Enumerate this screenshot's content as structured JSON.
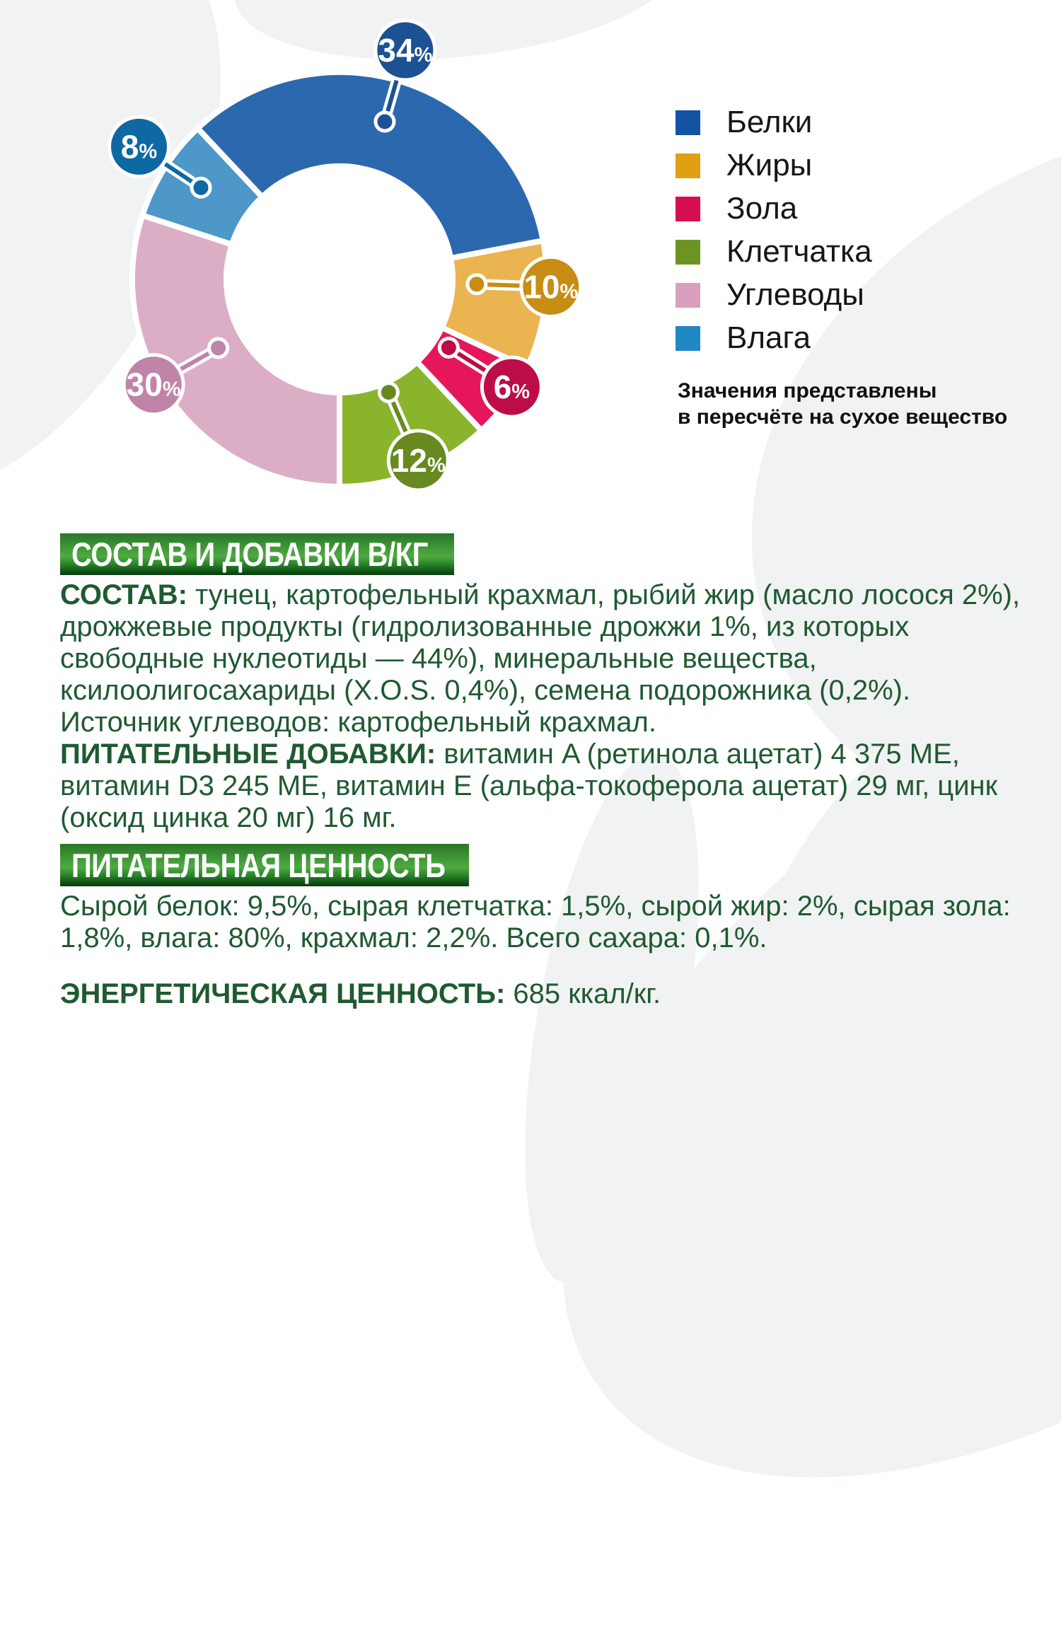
{
  "chart_data": {
    "type": "pie",
    "subtype": "donut",
    "unit": "%",
    "title": "",
    "slices": [
      {
        "label": "Белки",
        "value": 34,
        "segment_color": "#2c68ae",
        "callout_color": "#1c5193",
        "legend_color": "#1253a4"
      },
      {
        "label": "Жиры",
        "value": 10,
        "segment_color": "#eab450",
        "callout_color": "#c78d15",
        "legend_color": "#dfa013"
      },
      {
        "label": "Зола",
        "value": 6,
        "segment_color": "#e5175a",
        "callout_color": "#bd0d49",
        "legend_color": "#d60f4e"
      },
      {
        "label": "Клетчатка",
        "value": 12,
        "segment_color": "#89b42c",
        "callout_color": "#67891f",
        "legend_color": "#6d9422"
      },
      {
        "label": "Углеводы",
        "value": 30,
        "segment_color": "#dcaec6",
        "callout_color": "#bf84a7",
        "legend_color": "#d9a0bd"
      },
      {
        "label": "Влага",
        "value": 8,
        "segment_color": "#4d97c9",
        "callout_color": "#0e69a2",
        "legend_color": "#2288c3"
      }
    ],
    "note_lines": [
      "Значения представлены",
      "в пересчёте на сухое вещество"
    ],
    "legend_position": "right",
    "grid": false,
    "layout": {
      "center": [
        480,
        395
      ],
      "outer_radius": 293,
      "inner_radius": 160,
      "start_angle_deg": -43.2,
      "gap_stroke": 8,
      "label_angles_deg": [
        16,
        92,
        122,
        156.5,
        240.5,
        303.5
      ],
      "label_distances": [
        337,
        299,
        287,
        279,
        302,
        340
      ],
      "stick_length": 105,
      "bubble_radius": 42,
      "dot_radius": 13
    }
  },
  "sections": {
    "composition": {
      "header": "СОСТАВ И ДОБАВКИ В/КГ",
      "ingredients_label": "СОСТАВ:",
      "ingredients_text": " тунец, картофельный крахмал, рыбий жир (масло лосося 2%), дрожжевые продукты (гидролизованные дрожжи 1%, из которых свободные нуклеотиды — 44%), минеральные вещества, ксилоолигосахариды (X.O.S. 0,4%), семена подорожника (0,2%). Источник углеводов: картофельный крахмал.",
      "additives_label": "ПИТАТЕЛЬНЫЕ ДОБАВКИ:",
      "additives_text": " витамин A (ретинола ацетат) 4 375 МЕ, витамин D3 245 МЕ, витамин E (альфа-токоферола ацетат) 29 мг, цинк (оксид цинка 20 мг) 16 мг."
    },
    "nutrition": {
      "header": "ПИТАТЕЛЬНАЯ ЦЕННОСТЬ",
      "analysis": "Сырой белок: 9,5%, сырая клетчатка: 1,5%, сырой жир: 2%, сырая зола: 1,8%, влага: 80%, крахмал: 2,2%. Всего сахара: 0,1%.",
      "energy_label": "ЭНЕРГЕТИЧЕСКАЯ ЦЕННОСТЬ:",
      "energy_value": " 685 ккал/кг."
    }
  }
}
